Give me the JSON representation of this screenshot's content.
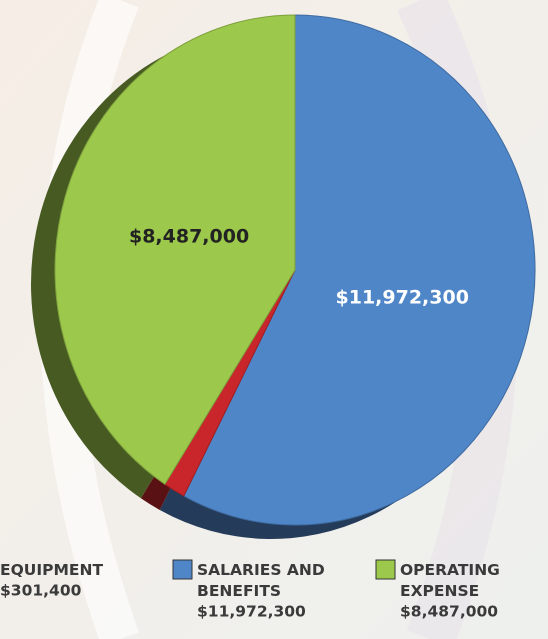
{
  "chart_data": {
    "type": "pie",
    "categories": [
      "SALARIES AND BENEFITS",
      "EQUIPMENT",
      "OPERATING EXPENSE"
    ],
    "values": [
      11972300,
      301400,
      8487000
    ],
    "value_labels": [
      "$11,972,300",
      "$301,400",
      "$8,487,000"
    ],
    "colors": [
      "#4f86c8",
      "#c8262b",
      "#9cc84b"
    ]
  }
}
